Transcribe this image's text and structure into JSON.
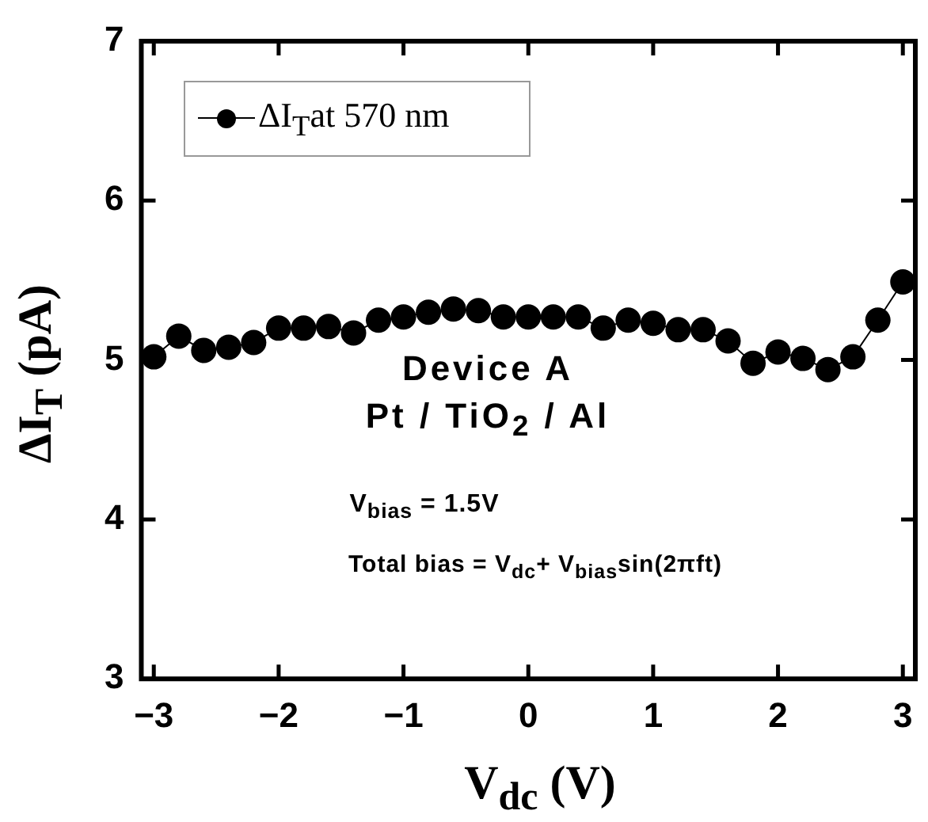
{
  "chart_data": {
    "type": "line",
    "xlabel": "V$_{dc}$ (V)",
    "ylabel": "ΔI$_{T}$ (pA)",
    "x": [
      -3,
      -2.8,
      -2.6,
      -2.4,
      -2.2,
      -2,
      -1.8,
      -1.6,
      -1.4,
      -1.2,
      -1,
      -0.8,
      -0.6,
      -0.4,
      -0.2,
      0,
      0.2,
      0.4,
      0.6,
      0.8,
      1,
      1.2,
      1.4,
      1.6,
      1.8,
      2,
      2.2,
      2.4,
      2.6,
      2.8,
      3
    ],
    "series": [
      {
        "name": "ΔI$_{T}$at 570 nm",
        "color": "#000000",
        "values": [
          5.02,
          5.15,
          5.06,
          5.08,
          5.11,
          5.2,
          5.2,
          5.21,
          5.17,
          5.25,
          5.27,
          5.3,
          5.32,
          5.31,
          5.27,
          5.27,
          5.27,
          5.27,
          5.2,
          5.25,
          5.23,
          5.19,
          5.19,
          5.12,
          4.98,
          5.05,
          5.01,
          4.94,
          5.02,
          5.25,
          5.49
        ]
      }
    ],
    "xlim": [
      -3.1,
      3.1
    ],
    "xticks": [
      {
        "value": -3,
        "label": "−3"
      },
      {
        "value": -2,
        "label": "−2"
      },
      {
        "value": -1,
        "label": "−1"
      },
      0,
      1,
      2,
      3
    ],
    "ylim": [
      3,
      7
    ],
    "yticks": [
      3,
      4,
      5,
      6,
      7
    ],
    "annotations": [
      "Device A",
      "Pt / TiO$_{2}$ / Al",
      "V$_{bias}$ = 1.5V",
      "Total bias = V$_{dc}$+ V$_{bias}$sin(2πft)"
    ],
    "legend": "top left",
    "marker": "circle",
    "line_style": "solid"
  }
}
